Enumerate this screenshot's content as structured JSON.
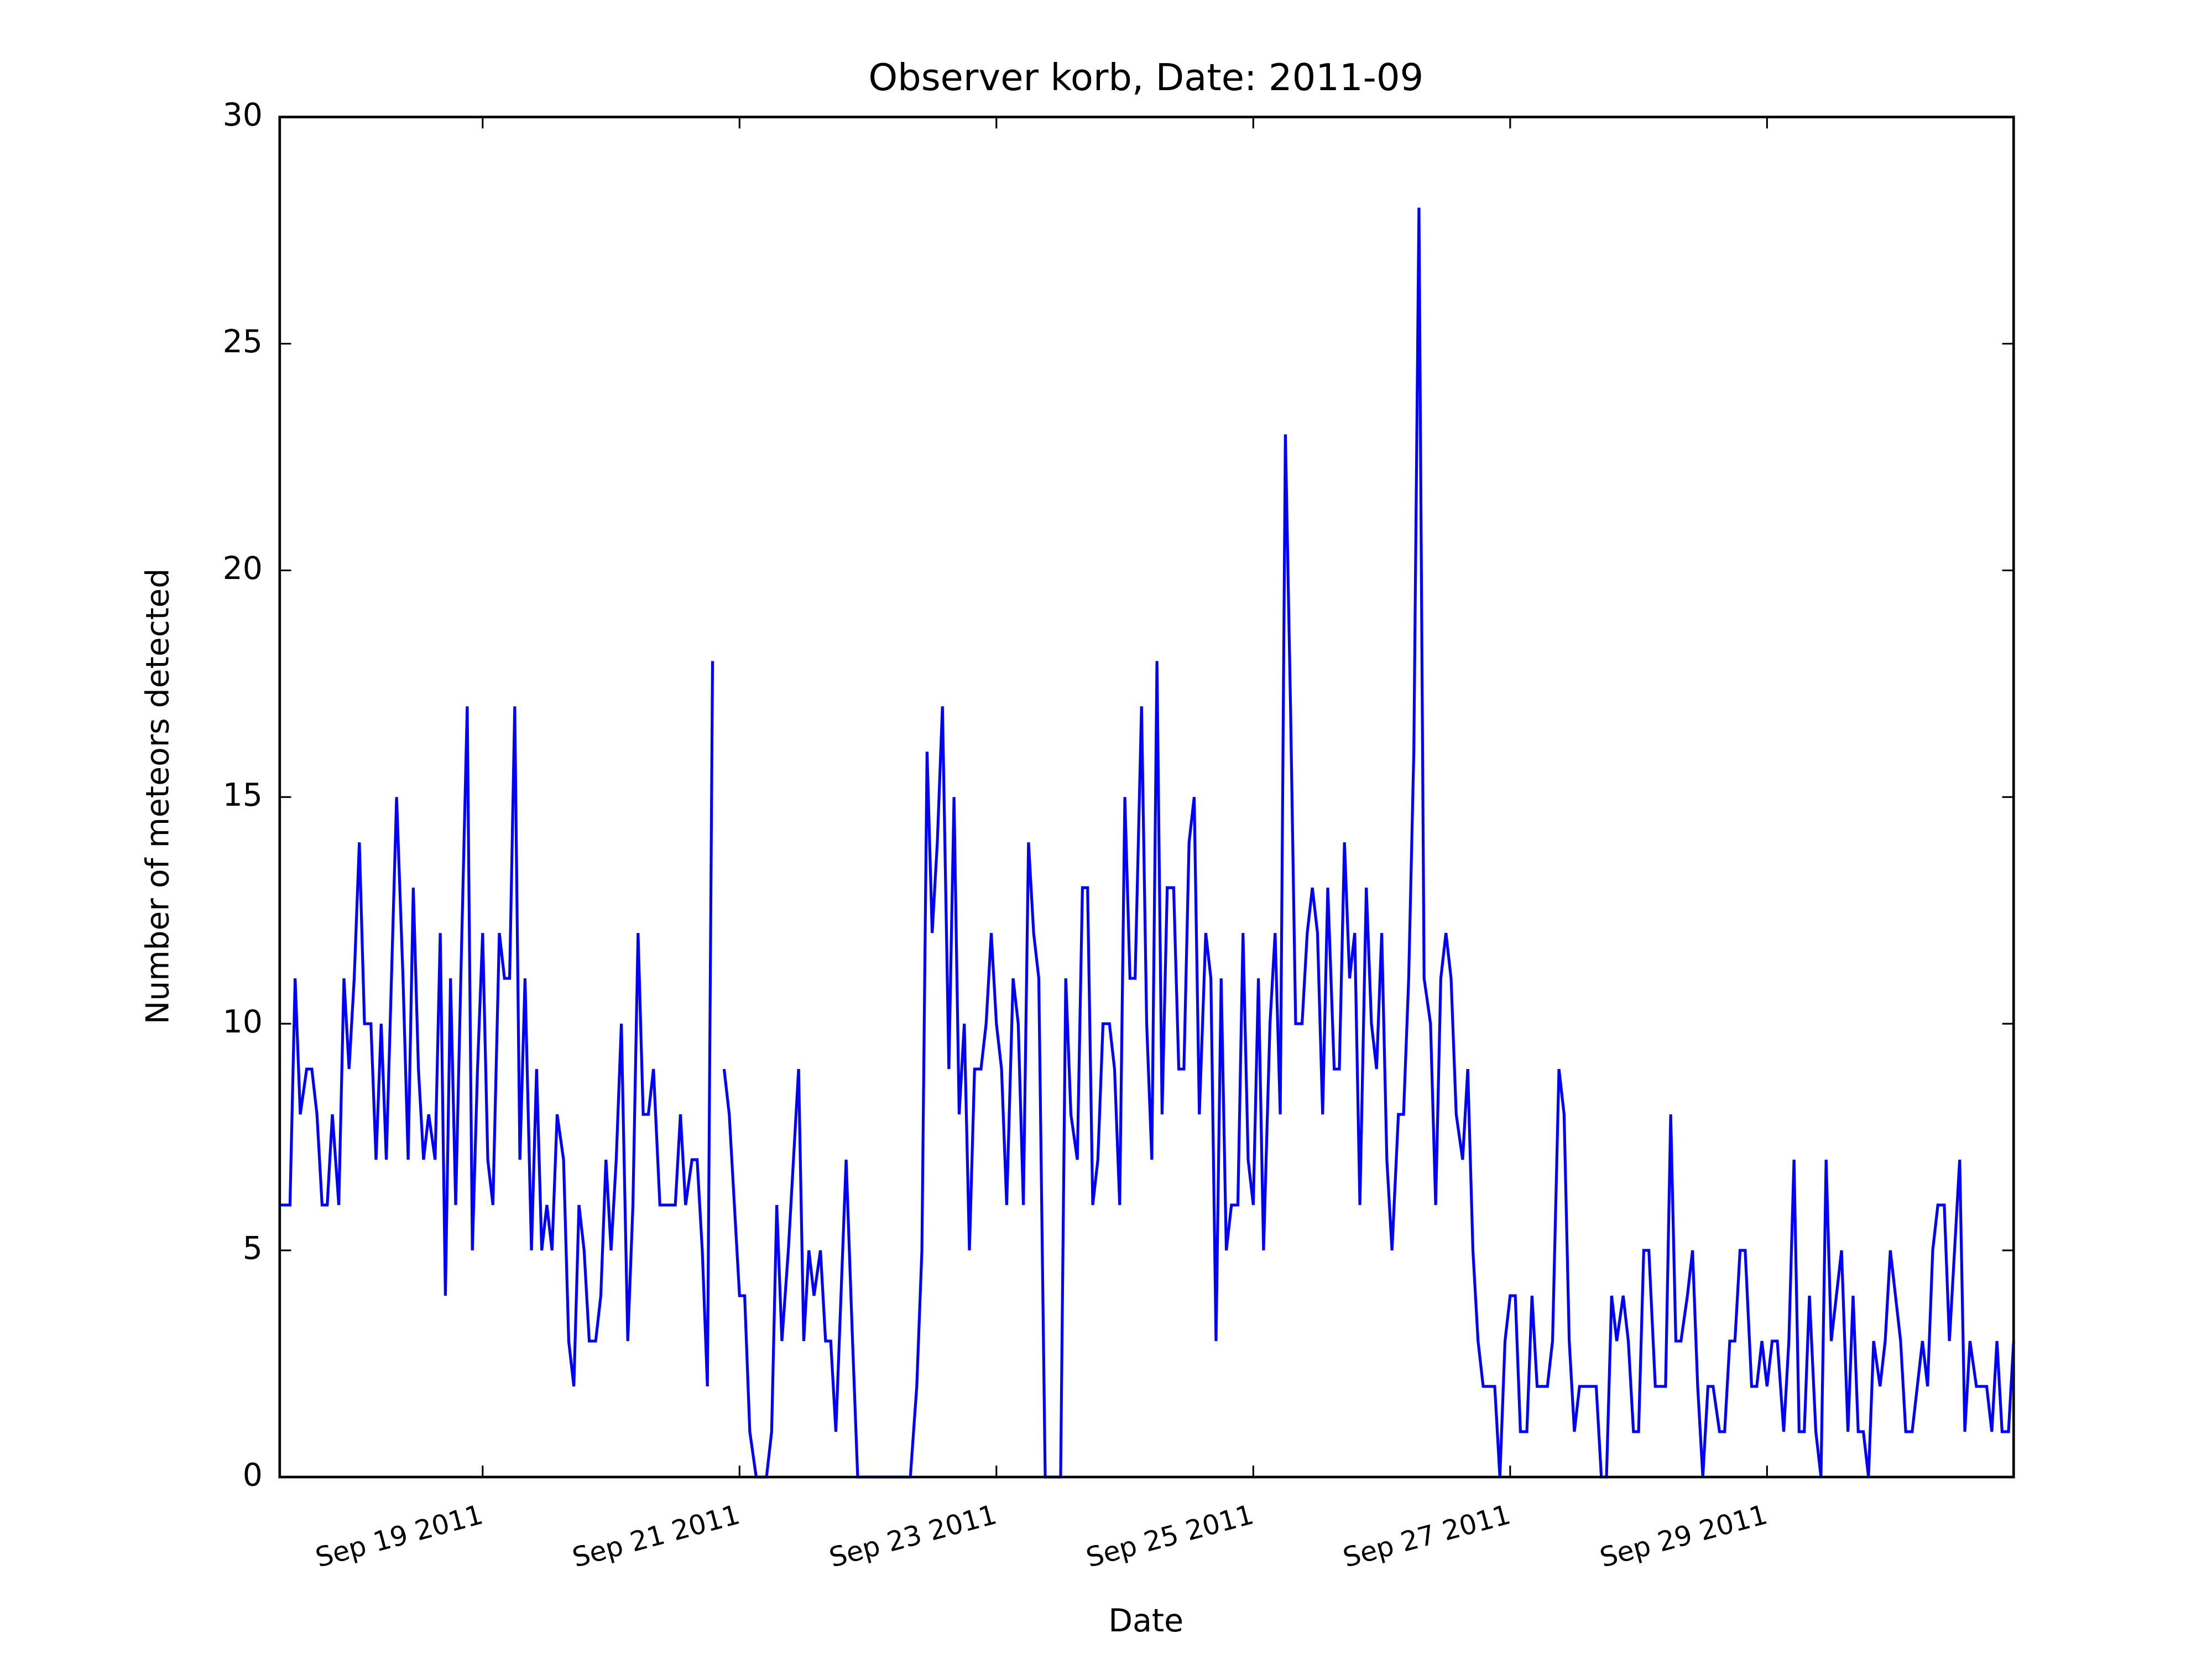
{
  "chart_data": {
    "type": "line",
    "title": "Observer korb, Date: 2011-09",
    "xlabel": "Date",
    "ylabel": "Number of meteors detected",
    "color": "#0000ff",
    "xlim": [
      17.42,
      30.92
    ],
    "ylim": [
      0,
      30
    ],
    "xticks": [
      {
        "value": 19,
        "label": "Sep 19 2011"
      },
      {
        "value": 21,
        "label": "Sep 21 2011"
      },
      {
        "value": 23,
        "label": "Sep 23 2011"
      },
      {
        "value": 25,
        "label": "Sep 25 2011"
      },
      {
        "value": 27,
        "label": "Sep 27 2011"
      },
      {
        "value": 29,
        "label": "Sep 29 2011"
      }
    ],
    "yticks": [
      0,
      5,
      10,
      15,
      20,
      25,
      30
    ],
    "x": [
      17.42,
      17.46,
      17.5,
      17.54,
      17.58,
      17.63,
      17.67,
      17.71,
      17.75,
      17.79,
      17.83,
      17.88,
      17.92,
      17.96,
      18,
      18.04,
      18.08,
      18.13,
      18.17,
      18.21,
      18.25,
      18.29,
      18.33,
      18.38,
      18.42,
      18.46,
      18.5,
      18.54,
      18.58,
      18.63,
      18.67,
      18.71,
      18.75,
      18.79,
      18.83,
      18.88,
      18.92,
      18.96,
      19,
      19.04,
      19.08,
      19.13,
      19.17,
      19.21,
      19.25,
      19.29,
      19.33,
      19.38,
      19.42,
      19.46,
      19.5,
      19.54,
      19.58,
      19.63,
      19.67,
      19.71,
      19.75,
      19.79,
      19.83,
      19.88,
      19.92,
      19.96,
      20,
      20.04,
      20.08,
      20.13,
      20.17,
      20.21,
      20.25,
      20.29,
      20.33,
      20.38,
      20.42,
      20.46,
      20.5,
      20.54,
      20.58,
      20.63,
      20.67,
      20.71,
      20.75,
      20.79,
      20.83,
      20.88,
      20.92,
      20.96,
      21,
      21.04,
      21.08,
      21.13,
      21.17,
      21.21,
      21.25,
      21.29,
      21.33,
      21.38,
      21.42,
      21.46,
      21.5,
      21.54,
      21.58,
      21.63,
      21.67,
      21.71,
      21.75,
      21.79,
      21.83,
      21.88,
      21.92,
      21.96,
      22,
      22.04,
      22.08,
      22.13,
      22.17,
      22.21,
      22.25,
      22.29,
      22.33,
      22.38,
      22.42,
      22.46,
      22.5,
      22.54,
      22.58,
      22.63,
      22.67,
      22.71,
      22.75,
      22.79,
      22.83,
      22.88,
      22.92,
      22.96,
      23,
      23.04,
      23.08,
      23.13,
      23.17,
      23.21,
      23.25,
      23.29,
      23.33,
      23.38,
      23.42,
      23.46,
      23.5,
      23.54,
      23.58,
      23.63,
      23.67,
      23.71,
      23.75,
      23.79,
      23.83,
      23.88,
      23.92,
      23.96,
      24,
      24.04,
      24.08,
      24.13,
      24.17,
      24.21,
      24.25,
      24.29,
      24.33,
      24.38,
      24.42,
      24.46,
      24.5,
      24.54,
      24.58,
      24.63,
      24.67,
      24.71,
      24.75,
      24.79,
      24.83,
      24.88,
      24.92,
      24.96,
      25,
      25.04,
      25.08,
      25.13,
      25.17,
      25.21,
      25.25,
      25.29,
      25.33,
      25.38,
      25.42,
      25.46,
      25.5,
      25.54,
      25.58,
      25.63,
      25.67,
      25.71,
      25.75,
      25.79,
      25.83,
      25.88,
      25.92,
      25.96,
      26,
      26.04,
      26.08,
      26.13,
      26.17,
      26.21,
      26.25,
      26.29,
      26.33,
      26.38,
      26.42,
      26.46,
      26.5,
      26.54,
      26.58,
      26.63,
      26.67,
      26.71,
      26.75,
      26.79,
      26.83,
      26.88,
      26.92,
      26.96,
      27,
      27.04,
      27.08,
      27.13,
      27.17,
      27.21,
      27.25,
      27.29,
      27.33,
      27.38,
      27.42,
      27.46,
      27.5,
      27.54,
      27.58,
      27.63,
      27.67,
      27.71,
      27.75,
      27.79,
      27.83,
      27.88,
      27.92,
      27.96,
      28,
      28.04,
      28.08,
      28.13,
      28.17,
      28.21,
      28.25,
      28.29,
      28.33,
      28.38,
      28.42,
      28.46,
      28.5,
      28.54,
      28.58,
      28.63,
      28.67,
      28.71,
      28.75,
      28.79,
      28.83,
      28.88,
      28.92,
      28.96,
      29,
      29.04,
      29.08,
      29.13,
      29.17,
      29.21,
      29.25,
      29.29,
      29.33,
      29.38,
      29.42,
      29.46,
      29.5,
      29.54,
      29.58,
      29.63,
      29.67,
      29.71,
      29.75,
      29.79,
      29.83,
      29.88,
      29.92,
      29.96,
      30,
      30.04,
      30.08,
      30.13,
      30.17,
      30.21,
      30.25,
      30.29,
      30.33,
      30.38,
      30.42,
      30.46,
      30.5,
      30.54,
      30.58,
      30.63,
      30.67,
      30.71,
      30.75,
      30.79,
      30.83,
      30.88,
      30.92
    ],
    "values": [
      6,
      6,
      6,
      11,
      8,
      9,
      9,
      8,
      6,
      6,
      8,
      6,
      11,
      9,
      11,
      14,
      10,
      10,
      7,
      10,
      7,
      11,
      15,
      11,
      7,
      13,
      9,
      7,
      8,
      7,
      12,
      4,
      11,
      6,
      11,
      17,
      5,
      9,
      12,
      7,
      6,
      12,
      11,
      11,
      17,
      7,
      11,
      5,
      9,
      5,
      6,
      5,
      8,
      7,
      3,
      2,
      6,
      5,
      3,
      3,
      4,
      7,
      5,
      7,
      10,
      3,
      6,
      12,
      8,
      8,
      9,
      6,
      6,
      6,
      6,
      8,
      6,
      7,
      7,
      5,
      2,
      18,
      null,
      9,
      8,
      6,
      4,
      4,
      1,
      0,
      0,
      0,
      1,
      6,
      3,
      5,
      7,
      9,
      3,
      5,
      4,
      5,
      3,
      3,
      1,
      4,
      7,
      3,
      0,
      0,
      0,
      0,
      0,
      0,
      0,
      0,
      0,
      0,
      0,
      2,
      5,
      16,
      12,
      14,
      17,
      9,
      15,
      8,
      10,
      5,
      9,
      9,
      10,
      12,
      10,
      9,
      6,
      11,
      10,
      6,
      14,
      12,
      11,
      0,
      0,
      0,
      0,
      11,
      8,
      7,
      13,
      13,
      6,
      7,
      10,
      10,
      9,
      6,
      15,
      11,
      11,
      17,
      10,
      7,
      18,
      8,
      13,
      13,
      9,
      9,
      14,
      15,
      8,
      12,
      11,
      3,
      11,
      5,
      6,
      6,
      12,
      7,
      6,
      11,
      5,
      10,
      12,
      8,
      23,
      17,
      10,
      10,
      12,
      13,
      12,
      8,
      13,
      9,
      9,
      14,
      11,
      12,
      6,
      13,
      10,
      9,
      12,
      7,
      5,
      8,
      8,
      11,
      16,
      28,
      11,
      10,
      6,
      11,
      12,
      11,
      8,
      7,
      9,
      5,
      3,
      2,
      2,
      2,
      0,
      3,
      4,
      4,
      1,
      1,
      4,
      2,
      2,
      2,
      3,
      9,
      8,
      3,
      1,
      2,
      2,
      2,
      2,
      0,
      0,
      4,
      3,
      4,
      3,
      1,
      1,
      5,
      5,
      2,
      2,
      2,
      8,
      3,
      3,
      4,
      5,
      2,
      0,
      2,
      2,
      1,
      1,
      3,
      3,
      5,
      5,
      2,
      2,
      3,
      2,
      3,
      3,
      1,
      3,
      7,
      1,
      1,
      4,
      1,
      0,
      7,
      3,
      4,
      5,
      1,
      4,
      1,
      1,
      0,
      3,
      2,
      3,
      5,
      4,
      3,
      1,
      1,
      2,
      3,
      2,
      5,
      6,
      6,
      3,
      5,
      7,
      1,
      3,
      2,
      2,
      2,
      1,
      3,
      1,
      1,
      3
    ]
  }
}
